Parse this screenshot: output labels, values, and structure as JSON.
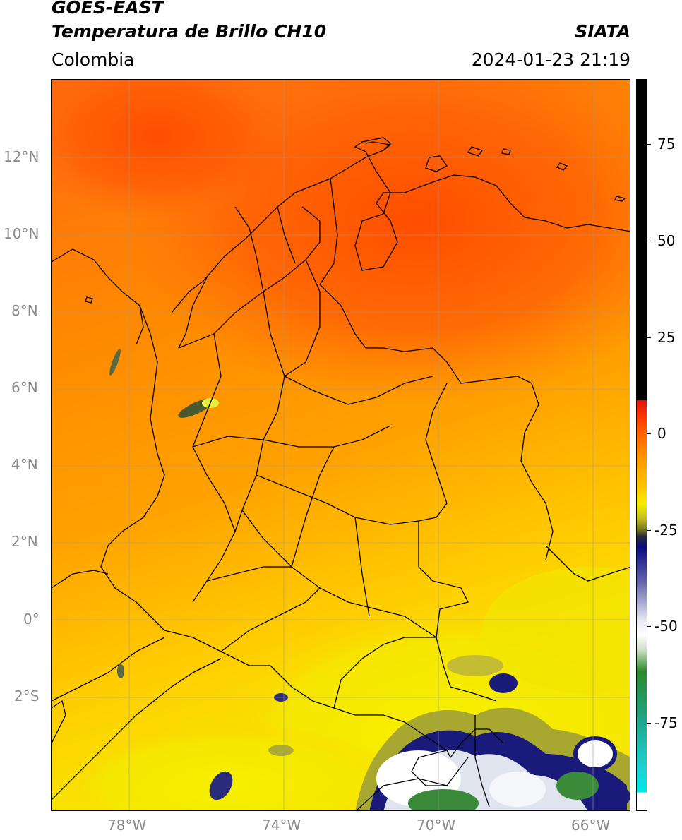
{
  "header": {
    "satellite": "GOES-EAST",
    "product": "Temperatura de Brillo CH10",
    "region": "Colombia",
    "agency": "SIATA",
    "datetime": "2024-01-23 21:19"
  },
  "map": {
    "lat_ticks": [
      "12°N",
      "10°N",
      "8°N",
      "6°N",
      "4°N",
      "2°N",
      "0°",
      "2°S"
    ],
    "lon_ticks": [
      "78°W",
      "74°W",
      "70°W",
      "66°W"
    ],
    "extent": {
      "lon_min": -80.0,
      "lon_max": -65.0,
      "lat_min": -4.7,
      "lat_max": 14.0
    }
  },
  "colorbar": {
    "labels": [
      "75",
      "50",
      "25",
      "0",
      "-25",
      "-50",
      "-75"
    ],
    "range": [
      -100,
      90
    ],
    "colors": {
      "black": "#000000",
      "red": "#e8100a",
      "orange": "#ff9a00",
      "yellow": "#f5ee00",
      "olive": "#7a7a20",
      "navy": "#0a0a80",
      "white": "#ffffff",
      "green": "#2a8a2a",
      "teal": "#20b4a0",
      "cyan": "#00e8e8"
    }
  }
}
